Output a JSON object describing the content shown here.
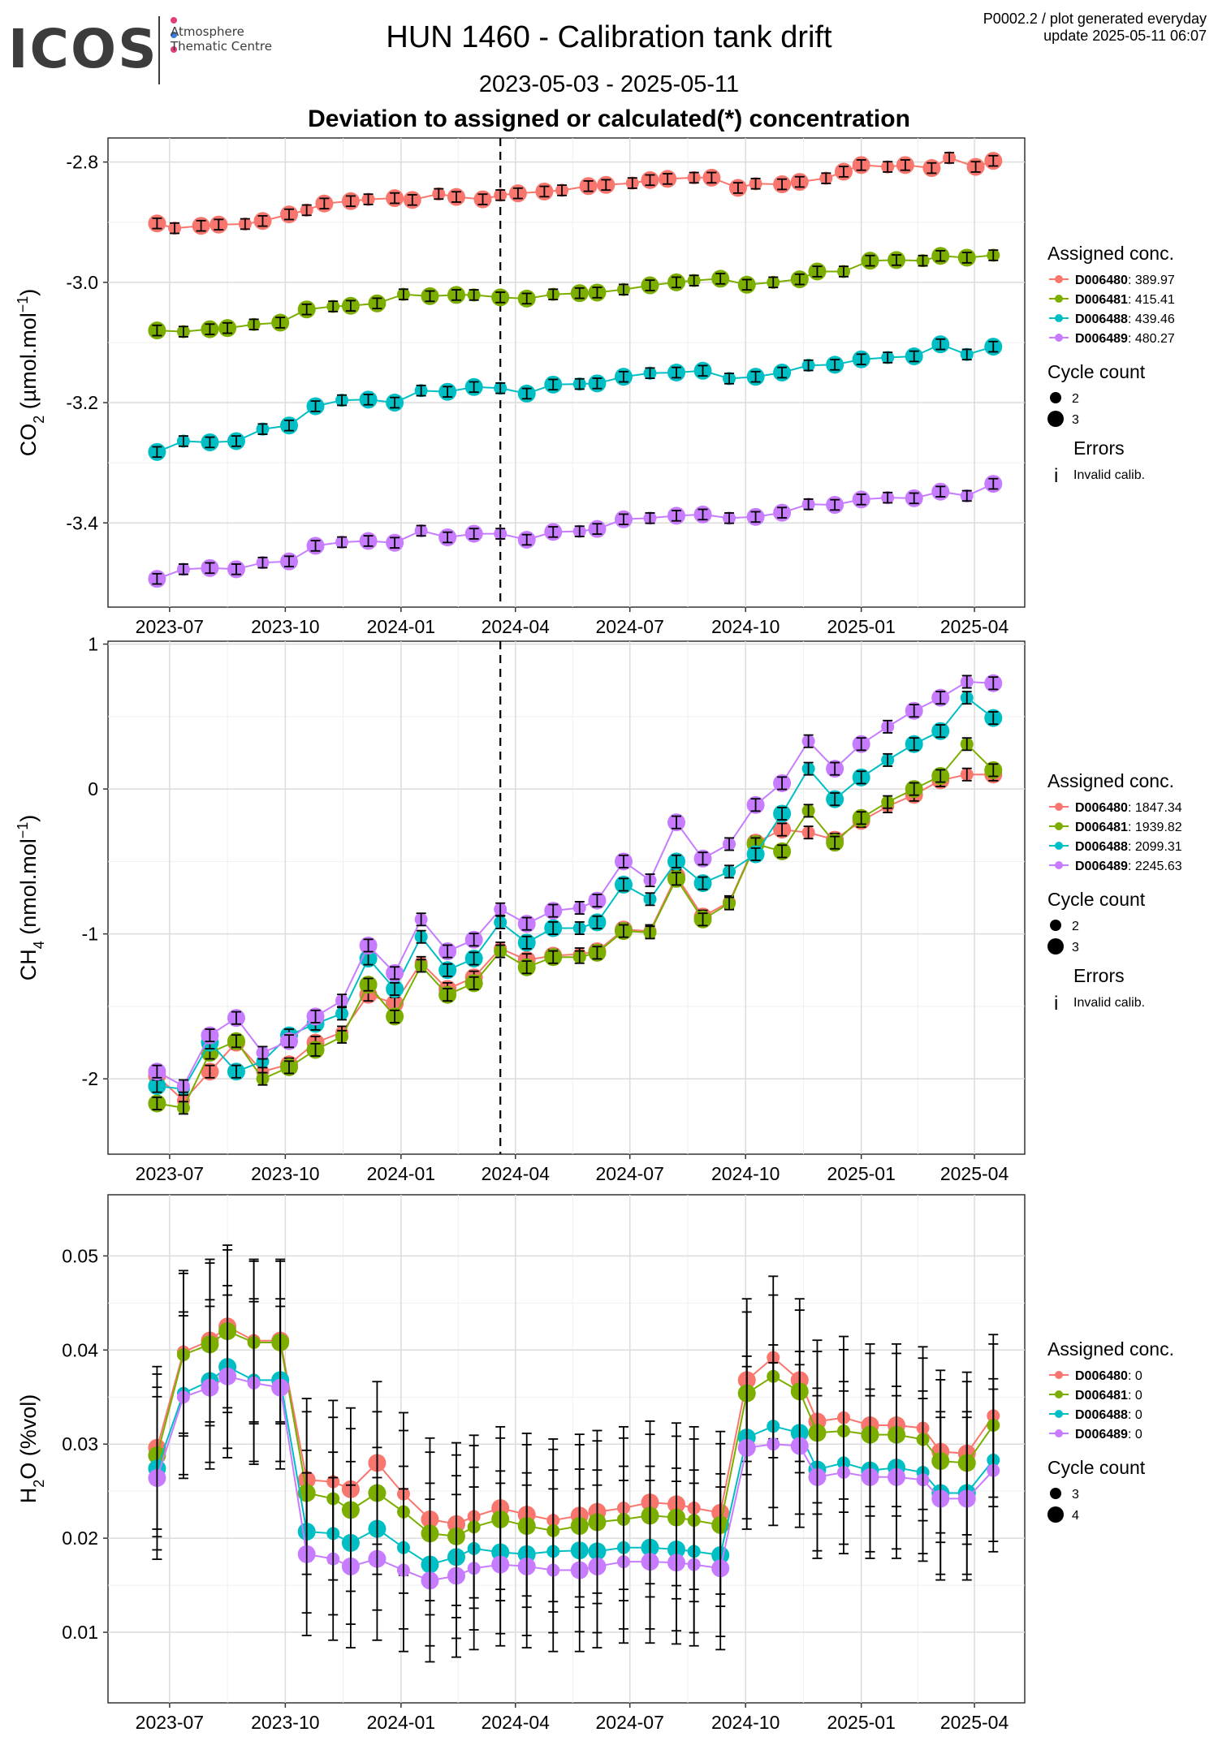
{
  "header": {
    "logo_text": "ICOS",
    "logo_subtext": "Atmosphere Thematic Centre",
    "title": "HUN 1460 - Calibration tank drift",
    "date_range": "2023-05-03 - 2025-05-11",
    "heading": "Deviation to assigned or calculated(*) concentration",
    "corner_line1": "P0002.2 / plot generated everyday",
    "corner_line2": "update  2025-05-11 06:07"
  },
  "colors": {
    "D006480": "#F8766D",
    "D006481": "#7CAE00",
    "D006488": "#00BFC4",
    "D006489": "#C77CFF"
  },
  "dates": [
    "2023-06-21",
    "2023-06-28",
    "2023-07-05",
    "2023-07-12",
    "2023-07-19",
    "2023-07-26",
    "2023-08-02",
    "2023-08-09",
    "2023-08-16",
    "2023-08-23",
    "2023-08-30",
    "2023-09-06",
    "2023-09-13",
    "2023-09-20",
    "2023-09-27",
    "2023-10-04",
    "2023-10-11",
    "2023-10-18",
    "2023-10-25",
    "2023-11-01",
    "2023-11-08",
    "2023-11-15",
    "2023-11-22",
    "2023-11-29",
    "2023-12-06",
    "2023-12-13",
    "2023-12-20",
    "2023-12-27",
    "2024-01-03",
    "2024-01-10",
    "2024-01-17",
    "2024-01-24",
    "2024-01-31",
    "2024-02-07",
    "2024-02-14",
    "2024-02-21",
    "2024-02-28",
    "2024-03-06",
    "2024-03-13",
    "2024-03-20",
    "2024-03-27",
    "2024-04-03",
    "2024-04-10",
    "2024-04-17",
    "2024-04-24",
    "2024-05-01",
    "2024-05-08",
    "2024-05-15",
    "2024-05-22",
    "2024-05-29",
    "2024-06-05",
    "2024-06-12",
    "2024-06-19",
    "2024-06-26",
    "2024-07-03",
    "2024-07-10",
    "2024-07-17",
    "2024-07-24",
    "2024-07-31",
    "2024-08-07",
    "2024-08-14",
    "2024-08-21",
    "2024-08-28",
    "2024-09-04",
    "2024-09-11",
    "2024-09-18",
    "2024-09-25",
    "2024-10-02",
    "2024-10-09",
    "2024-10-16",
    "2024-10-23",
    "2024-10-30",
    "2024-11-06",
    "2024-11-13",
    "2024-11-20",
    "2024-11-27",
    "2024-12-04",
    "2024-12-11",
    "2024-12-18",
    "2024-12-25",
    "2025-01-01",
    "2025-01-08",
    "2025-01-15",
    "2025-01-22",
    "2025-01-29",
    "2025-02-05",
    "2025-02-12",
    "2025-02-19",
    "2025-02-26",
    "2025-03-05",
    "2025-03-12",
    "2025-03-19",
    "2025-03-26",
    "2025-04-02",
    "2025-04-09",
    "2025-04-16"
  ],
  "chart_data": [
    {
      "type": "line",
      "ylabel_main": "CO",
      "ylabel_sub": "2",
      "ylabel_unit": " (µmol.mol",
      "ylabel_sup": "−1",
      "ylabel_end": ")",
      "x_tick_labels": [
        "2023-07",
        "2023-10",
        "2024-01",
        "2024-04",
        "2024-07",
        "2024-10",
        "2025-01",
        "2025-04"
      ],
      "x_ticks": [
        "2023-07-01",
        "2023-10-01",
        "2024-01-01",
        "2024-04-01",
        "2024-07-01",
        "2024-10-01",
        "2025-01-01",
        "2025-04-01"
      ],
      "xlim": [
        "2023-05-13",
        "2025-05-11"
      ],
      "ylim": [
        -3.54,
        -2.76
      ],
      "y_ticks": [
        -3.4,
        -3.2,
        -3.0,
        -2.8
      ],
      "y_tick_labels": [
        "-3.4",
        "-3.2",
        "-3.0",
        "-2.8"
      ],
      "vline": "2024-03-20",
      "legend_title": "Assigned conc.",
      "legend_position": "right",
      "cycle_title": "Cycle count",
      "cycle_labels": [
        "2",
        "3"
      ],
      "errors_title": "Errors",
      "errors_label": "Invalid calib.",
      "series": [
        {
          "id": "D006480",
          "name": "D006480",
          "assigned": "389.97",
          "values": [
            -2.902,
            -2.91,
            -2.906,
            -2.904,
            -2.903,
            -2.898,
            -2.887,
            -2.88,
            -2.869,
            -2.865,
            -2.862,
            -2.86,
            -2.863,
            -2.853,
            -2.858,
            -2.862,
            -2.855,
            -2.852,
            -2.849,
            -2.847,
            -2.84,
            -2.838,
            -2.835,
            -2.83,
            -2.828,
            -2.826,
            -2.826,
            -2.843,
            -2.836,
            -2.837,
            -2.833,
            -2.827,
            -2.816,
            -2.805,
            -2.808,
            -2.805,
            -2.81,
            -2.793,
            -2.808,
            -2.798
          ]
        },
        {
          "id": "D006481",
          "name": "D006481",
          "assigned": "415.41",
          "values": [
            -3.08,
            -3.082,
            -3.078,
            -3.076,
            -3.07,
            -3.067,
            -3.045,
            -3.04,
            -3.039,
            -3.035,
            -3.02,
            -3.023,
            -3.021,
            -3.021,
            -3.025,
            -3.027,
            -3.02,
            -3.018,
            -3.017,
            -3.012,
            -3.005,
            -3.0,
            -2.997,
            -2.994,
            -3.004,
            -3.0,
            -2.995,
            -2.982,
            -2.982,
            -2.964,
            -2.963,
            -2.964,
            -2.956,
            -2.959,
            -2.955
          ]
        },
        {
          "id": "D006488",
          "name": "D006488",
          "assigned": "439.46",
          "values": [
            -3.282,
            -3.264,
            -3.266,
            -3.264,
            -3.244,
            -3.238,
            -3.206,
            -3.196,
            -3.195,
            -3.2,
            -3.18,
            -3.182,
            -3.174,
            -3.176,
            -3.185,
            -3.17,
            -3.169,
            -3.168,
            -3.157,
            -3.151,
            -3.15,
            -3.147,
            -3.16,
            -3.157,
            -3.15,
            -3.138,
            -3.137,
            -3.128,
            -3.125,
            -3.123,
            -3.103,
            -3.12,
            -3.107
          ]
        },
        {
          "id": "D006489",
          "name": "D006489",
          "assigned": "480.27",
          "values": [
            -3.493,
            -3.477,
            -3.475,
            -3.477,
            -3.466,
            -3.464,
            -3.438,
            -3.432,
            -3.43,
            -3.433,
            -3.413,
            -3.424,
            -3.418,
            -3.418,
            -3.428,
            -3.415,
            -3.414,
            -3.41,
            -3.394,
            -3.392,
            -3.388,
            -3.386,
            -3.392,
            -3.39,
            -3.383,
            -3.369,
            -3.37,
            -3.361,
            -3.358,
            -3.359,
            -3.348,
            -3.355,
            -3.335
          ]
        }
      ]
    },
    {
      "type": "line",
      "ylabel_main": "CH",
      "ylabel_sub": "4",
      "ylabel_unit": " (nmol.mol",
      "ylabel_sup": "−1",
      "ylabel_end": ")",
      "x_tick_labels": [
        "2023-07",
        "2023-10",
        "2024-01",
        "2024-04",
        "2024-07",
        "2024-10",
        "2025-01",
        "2025-04"
      ],
      "x_ticks": [
        "2023-07-01",
        "2023-10-01",
        "2024-01-01",
        "2024-04-01",
        "2024-07-01",
        "2024-10-01",
        "2025-01-01",
        "2025-04-01"
      ],
      "xlim": [
        "2023-05-13",
        "2025-05-11"
      ],
      "ylim": [
        -2.52,
        1.02
      ],
      "y_ticks": [
        -2,
        -1,
        0,
        1
      ],
      "y_tick_labels": [
        "-2",
        "-1",
        "0",
        "1"
      ],
      "vline": "2024-03-20",
      "legend_title": "Assigned conc.",
      "legend_position": "right",
      "cycle_title": "Cycle count",
      "cycle_labels": [
        "2",
        "3"
      ],
      "errors_title": "Errors",
      "errors_label": "Invalid calib.",
      "series": [
        {
          "id": "D006480",
          "name": "D006480",
          "assigned": "1847.34",
          "values": [
            -1.98,
            -2.15,
            -1.95,
            -1.75,
            -1.95,
            -1.9,
            -1.75,
            -1.68,
            -1.42,
            -1.48,
            -1.2,
            -1.38,
            -1.3,
            -1.1,
            -1.18,
            -1.15,
            -1.14,
            -1.12,
            -0.97,
            -0.98,
            -0.6,
            -0.88,
            -0.78,
            -0.37,
            -0.28,
            -0.3,
            -0.35,
            -0.22,
            -0.12,
            -0.04,
            0.06,
            0.1,
            0.1
          ]
        },
        {
          "id": "D006481",
          "name": "D006481",
          "assigned": "1939.82",
          "values": [
            -2.17,
            -2.2,
            -1.82,
            -1.74,
            -2.0,
            -1.92,
            -1.8,
            -1.71,
            -1.35,
            -1.57,
            -1.22,
            -1.42,
            -1.34,
            -1.12,
            -1.23,
            -1.16,
            -1.16,
            -1.13,
            -0.98,
            -0.99,
            -0.62,
            -0.9,
            -0.79,
            -0.38,
            -0.43,
            -0.15,
            -0.37,
            -0.2,
            -0.09,
            0.0,
            0.09,
            0.31,
            0.13
          ]
        },
        {
          "id": "D006488",
          "name": "D006488",
          "assigned": "2099.31",
          "values": [
            -2.05,
            -2.07,
            -1.75,
            -1.95,
            -1.88,
            -1.7,
            -1.62,
            -1.55,
            -1.17,
            -1.38,
            -1.02,
            -1.25,
            -1.17,
            -0.92,
            -1.06,
            -0.96,
            -0.96,
            -0.92,
            -0.66,
            -0.76,
            -0.5,
            -0.65,
            -0.57,
            -0.45,
            -0.17,
            0.14,
            -0.07,
            0.08,
            0.2,
            0.31,
            0.4,
            0.63,
            0.49
          ]
        },
        {
          "id": "D006489",
          "name": "D006489",
          "assigned": "2245.63",
          "values": [
            -1.95,
            -2.05,
            -1.7,
            -1.58,
            -1.82,
            -1.74,
            -1.57,
            -1.46,
            -1.08,
            -1.27,
            -0.9,
            -1.12,
            -1.04,
            -0.83,
            -0.93,
            -0.84,
            -0.82,
            -0.77,
            -0.5,
            -0.63,
            -0.23,
            -0.48,
            -0.38,
            -0.11,
            0.04,
            0.33,
            0.14,
            0.31,
            0.43,
            0.54,
            0.63,
            0.74,
            0.73
          ]
        }
      ]
    },
    {
      "type": "line",
      "ylabel_main": "H",
      "ylabel_sub": "2",
      "ylabel_unit": "O (%vol)",
      "ylabel_sup": "",
      "ylabel_end": "",
      "x_tick_labels": [
        "2023-07",
        "2023-10",
        "2024-01",
        "2024-04",
        "2024-07",
        "2024-10",
        "2025-01",
        "2025-04"
      ],
      "x_ticks": [
        "2023-07-01",
        "2023-10-01",
        "2024-01-01",
        "2024-04-01",
        "2024-07-01",
        "2024-10-01",
        "2025-01-01",
        "2025-04-01"
      ],
      "xlim": [
        "2023-05-13",
        "2025-05-11"
      ],
      "ylim": [
        0.0025,
        0.0565
      ],
      "y_ticks": [
        0.01,
        0.02,
        0.03,
        0.04,
        0.05
      ],
      "y_tick_labels": [
        "0.01",
        "0.02",
        "0.03",
        "0.04",
        "0.05"
      ],
      "vline": null,
      "legend_title": "Assigned conc.",
      "legend_position": "right",
      "cycle_title": "Cycle count",
      "cycle_labels": [
        "3",
        "4"
      ],
      "errors_title": "",
      "errors_label": "",
      "series": [
        {
          "id": "D006480",
          "name": "D006480",
          "assigned": "0",
          "values": [
            0.0296,
            0.0398,
            0.041,
            0.0425,
            0.041,
            0.041,
            0.0262,
            0.026,
            0.0252,
            0.028,
            0.0247,
            0.022,
            0.0215,
            0.0223,
            0.0232,
            0.0225,
            0.0219,
            0.0224,
            0.0228,
            0.0232,
            0.0238,
            0.0236,
            0.0232,
            0.0227,
            0.0368,
            0.0392,
            0.0368,
            0.0324,
            0.0328,
            0.032,
            0.032,
            0.0317,
            0.0292,
            0.029,
            0.033
          ]
        },
        {
          "id": "D006481",
          "name": "D006481",
          "assigned": "0",
          "values": [
            0.0288,
            0.0395,
            0.0406,
            0.042,
            0.0408,
            0.0408,
            0.0248,
            0.0242,
            0.023,
            0.0248,
            0.0228,
            0.0205,
            0.0202,
            0.0212,
            0.022,
            0.0213,
            0.0208,
            0.0213,
            0.0217,
            0.022,
            0.0224,
            0.0222,
            0.0219,
            0.0214,
            0.0354,
            0.0372,
            0.0356,
            0.0312,
            0.0314,
            0.031,
            0.031,
            0.0305,
            0.0282,
            0.028,
            0.032
          ]
        },
        {
          "id": "D006488",
          "name": "D006488",
          "assigned": "0",
          "values": [
            0.0274,
            0.0354,
            0.0367,
            0.0382,
            0.0368,
            0.0368,
            0.0207,
            0.0205,
            0.0195,
            0.021,
            0.019,
            0.0172,
            0.018,
            0.0189,
            0.0185,
            0.0183,
            0.0186,
            0.0187,
            0.0186,
            0.019,
            0.019,
            0.0188,
            0.0186,
            0.0182,
            0.0307,
            0.0319,
            0.0312,
            0.0273,
            0.028,
            0.0272,
            0.0275,
            0.027,
            0.0248,
            0.0248,
            0.0283
          ]
        },
        {
          "id": "D006489",
          "name": "D006489",
          "assigned": "0",
          "values": [
            0.0264,
            0.035,
            0.036,
            0.0372,
            0.0365,
            0.036,
            0.0183,
            0.0178,
            0.017,
            0.0178,
            0.0166,
            0.0155,
            0.016,
            0.0168,
            0.0172,
            0.017,
            0.0166,
            0.0166,
            0.017,
            0.0175,
            0.0175,
            0.0174,
            0.0172,
            0.0168,
            0.0296,
            0.03,
            0.0298,
            0.0265,
            0.027,
            0.0265,
            0.0265,
            0.0262,
            0.0242,
            0.0242,
            0.0272
          ]
        }
      ]
    }
  ]
}
